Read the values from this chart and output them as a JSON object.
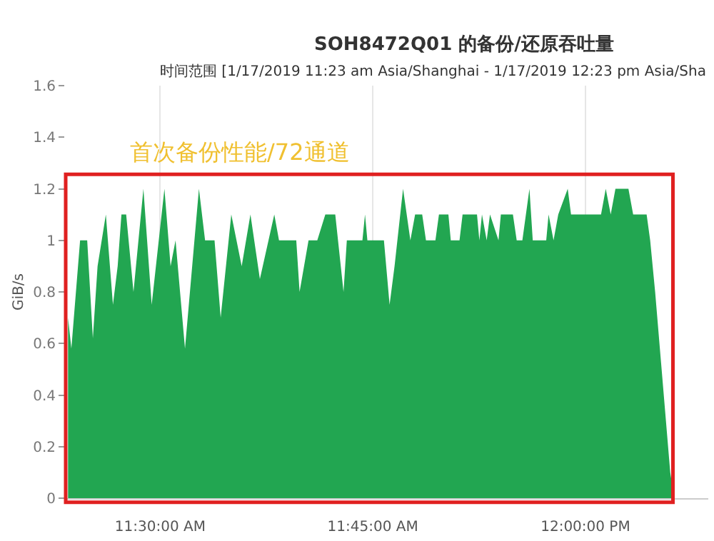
{
  "chart_data": {
    "type": "area",
    "title": "SOH8472Q01 的备份/还原吞吐量",
    "subtitle": "时间范围 [1/17/2019 11:23 am Asia/Shanghai - 1/17/2019 12:23 pm Asia/Sha",
    "ylabel": "GiB/s",
    "annotations": [
      "首次备份性能/72通道"
    ],
    "xlim": [
      "2019-01-17T11:23:20",
      "2019-01-17T12:08:40"
    ],
    "xticks": [
      {
        "value": "2019-01-17T11:30",
        "label": "11:30:00 AM"
      },
      {
        "value": "2019-01-17T11:45",
        "label": "11:45:00 AM"
      },
      {
        "value": "2019-01-17T12:00",
        "label": "12:00:00 PM"
      }
    ],
    "ylim": [
      0,
      1.6
    ],
    "yticks": [
      0,
      0.2,
      0.4,
      0.6,
      0.8,
      1,
      1.2,
      1.4,
      1.6
    ],
    "grid": "x",
    "x": [
      "2019-01-17T11:23:30",
      "2019-01-17T11:23:44",
      "2019-01-17T11:24:21",
      "2019-01-17T11:24:51",
      "2019-01-17T11:25:15",
      "2019-01-17T11:25:35",
      "2019-01-17T11:26:10",
      "2019-01-17T11:26:40",
      "2019-01-17T11:27:00",
      "2019-01-17T11:27:16",
      "2019-01-17T11:27:36",
      "2019-01-17T11:28:07",
      "2019-01-17T11:28:49",
      "2019-01-17T11:29:24",
      "2019-01-17T11:30:18",
      "2019-01-17T11:30:44",
      "2019-01-17T11:31:05",
      "2019-01-17T11:31:45",
      "2019-01-17T11:32:44",
      "2019-01-17T11:33:10",
      "2019-01-17T11:33:50",
      "2019-01-17T11:34:16",
      "2019-01-17T11:35:01",
      "2019-01-17T11:35:45",
      "2019-01-17T11:36:22",
      "2019-01-17T11:37:02",
      "2019-01-17T11:38:03",
      "2019-01-17T11:38:23",
      "2019-01-17T11:39:36",
      "2019-01-17T11:39:50",
      "2019-01-17T11:40:28",
      "2019-01-17T11:41:05",
      "2019-01-17T11:41:39",
      "2019-01-17T11:42:21",
      "2019-01-17T11:42:56",
      "2019-01-17T11:43:10",
      "2019-01-17T11:44:16",
      "2019-01-17T11:44:27",
      "2019-01-17T11:44:37",
      "2019-01-17T11:45:47",
      "2019-01-17T11:46:11",
      "2019-01-17T11:46:32",
      "2019-01-17T11:47:08",
      "2019-01-17T11:47:39",
      "2019-01-17T11:47:59",
      "2019-01-17T11:48:29",
      "2019-01-17T11:48:45",
      "2019-01-17T11:49:25",
      "2019-01-17T11:49:40",
      "2019-01-17T11:50:20",
      "2019-01-17T11:50:30",
      "2019-01-17T11:51:07",
      "2019-01-17T11:51:20",
      "2019-01-17T11:52:21",
      "2019-01-17T11:52:31",
      "2019-01-17T11:52:42",
      "2019-01-17T11:53:02",
      "2019-01-17T11:53:16",
      "2019-01-17T11:53:52",
      "2019-01-17T11:54:02",
      "2019-01-17T11:54:53",
      "2019-01-17T11:55:09",
      "2019-01-17T11:55:33",
      "2019-01-17T11:56:03",
      "2019-01-17T11:56:17",
      "2019-01-17T11:57:14",
      "2019-01-17T11:57:24",
      "2019-01-17T11:57:45",
      "2019-01-17T11:58:05",
      "2019-01-17T11:58:45",
      "2019-01-17T11:58:59",
      "2019-01-17T12:01:06",
      "2019-01-17T12:01:26",
      "2019-01-17T12:01:47",
      "2019-01-17T12:02:07",
      "2019-01-17T12:03:02",
      "2019-01-17T12:03:22",
      "2019-01-17T12:04:19",
      "2019-01-17T12:04:34",
      "2019-01-17T12:04:55",
      "2019-01-17T12:05:59",
      "2019-01-17T12:06:16",
      "2019-01-17T12:08:40"
    ],
    "series": [
      {
        "color": "#22a651",
        "values": [
          0.7,
          0.58,
          1.0,
          1.0,
          0.62,
          0.9,
          1.1,
          0.75,
          0.9,
          1.1,
          1.1,
          0.8,
          1.2,
          0.75,
          1.2,
          0.9,
          1.0,
          0.58,
          1.2,
          1.0,
          1.0,
          0.7,
          1.1,
          0.9,
          1.1,
          0.85,
          1.1,
          1.0,
          1.0,
          0.8,
          1.0,
          1.0,
          1.1,
          1.1,
          0.8,
          1.0,
          1.0,
          1.1,
          1.0,
          1.0,
          0.75,
          0.9,
          1.2,
          1.0,
          1.1,
          1.1,
          1.0,
          1.0,
          1.1,
          1.1,
          1.0,
          1.0,
          1.1,
          1.1,
          1.0,
          1.1,
          1.0,
          1.1,
          1.0,
          1.1,
          1.1,
          1.0,
          1.0,
          1.2,
          1.0,
          1.0,
          1.1,
          1.0,
          1.1,
          1.2,
          1.1,
          1.1,
          1.2,
          1.1,
          1.2,
          1.2,
          1.1,
          1.1,
          1.0,
          0.8,
          0.1,
          0,
          0
        ]
      }
    ]
  }
}
